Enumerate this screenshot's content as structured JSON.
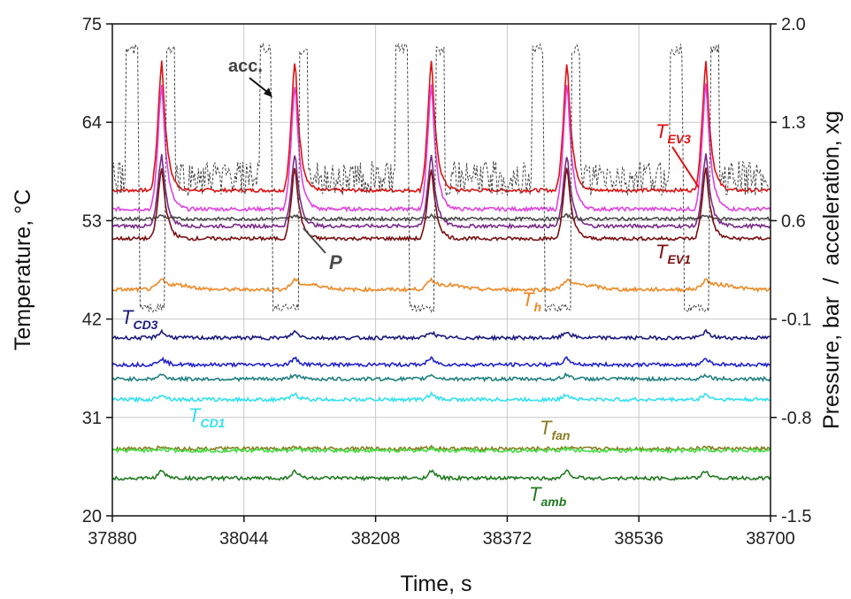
{
  "chart_data": {
    "type": "line",
    "xlabel": "Time, s",
    "ylabel_left": "Temperature, °C",
    "ylabel_right": "Pressure, bar  /  acceleration, xg",
    "xlim": [
      37880,
      38700
    ],
    "ylim_left": [
      20,
      75
    ],
    "ylim_right": [
      -1.5,
      2.0
    ],
    "xticks": [
      "37880",
      "38044",
      "38208",
      "38372",
      "38536",
      "38700"
    ],
    "yticks_left": [
      "20",
      "31",
      "42",
      "53",
      "64",
      "75"
    ],
    "yticks_right": [
      "-1.5",
      "-0.8",
      "-0.1",
      "0.6",
      "1.3",
      "2.0"
    ],
    "grid": true,
    "peaks_x": [
      37942,
      38108,
      38278,
      38447,
      38620
    ],
    "series": [
      {
        "id": "tev3",
        "label_main": "T",
        "label_sub": "EV3",
        "color": "#dd1111",
        "axis": "left",
        "baseline": 56.4,
        "peak": 71.0
      },
      {
        "id": "tev2",
        "color": "#e040e0",
        "axis": "left",
        "baseline": 54.3,
        "peak": 68.5
      },
      {
        "id": "tev_mid",
        "color": "#7a2a8a",
        "axis": "left",
        "baseline": 52.4,
        "peak": 60.5
      },
      {
        "id": "p",
        "label_main": "P",
        "color": "#4a4a4a",
        "axis": "left",
        "baseline": 53.2,
        "peak": 53.6
      },
      {
        "id": "tev1",
        "label_main": "T",
        "label_sub": "EV1",
        "color": "#7a1010",
        "axis": "left",
        "baseline": 51.0,
        "peak": 59.0
      },
      {
        "id": "th",
        "label_main": "T",
        "label_sub": "h",
        "color": "#ee8822",
        "axis": "left",
        "baseline": 45.3,
        "peak": 46.2
      },
      {
        "id": "tcd3",
        "label_main": "T",
        "label_sub": "CD3",
        "color": "#1a1a80",
        "axis": "left",
        "baseline": 39.9,
        "peak": 40.6
      },
      {
        "id": "tcd2",
        "color": "#2222cc",
        "axis": "left",
        "baseline": 36.9,
        "peak": 37.6
      },
      {
        "id": "tcd_teal",
        "color": "#208080",
        "axis": "left",
        "baseline": 35.3,
        "peak": 35.8
      },
      {
        "id": "tcd1",
        "label_main": "T",
        "label_sub": "CD1",
        "color": "#30e0f0",
        "axis": "left",
        "baseline": 33.0,
        "peak": 33.6
      },
      {
        "id": "tfan",
        "label_main": "T",
        "label_sub": "fan",
        "color": "#8a7a20",
        "axis": "left",
        "baseline": 27.5,
        "peak": 27.7
      },
      {
        "id": "tfan2",
        "color": "#44dd44",
        "axis": "left",
        "baseline": 27.3,
        "peak": 27.5
      },
      {
        "id": "tamb",
        "label_main": "T",
        "label_sub": "amb",
        "color": "#207a20",
        "axis": "left",
        "baseline": 24.2,
        "peak": 25.0
      },
      {
        "id": "acc",
        "label_main": "acc.",
        "color": "#444444",
        "axis": "right",
        "baseline": 0.9,
        "peak": 1.75
      }
    ]
  }
}
